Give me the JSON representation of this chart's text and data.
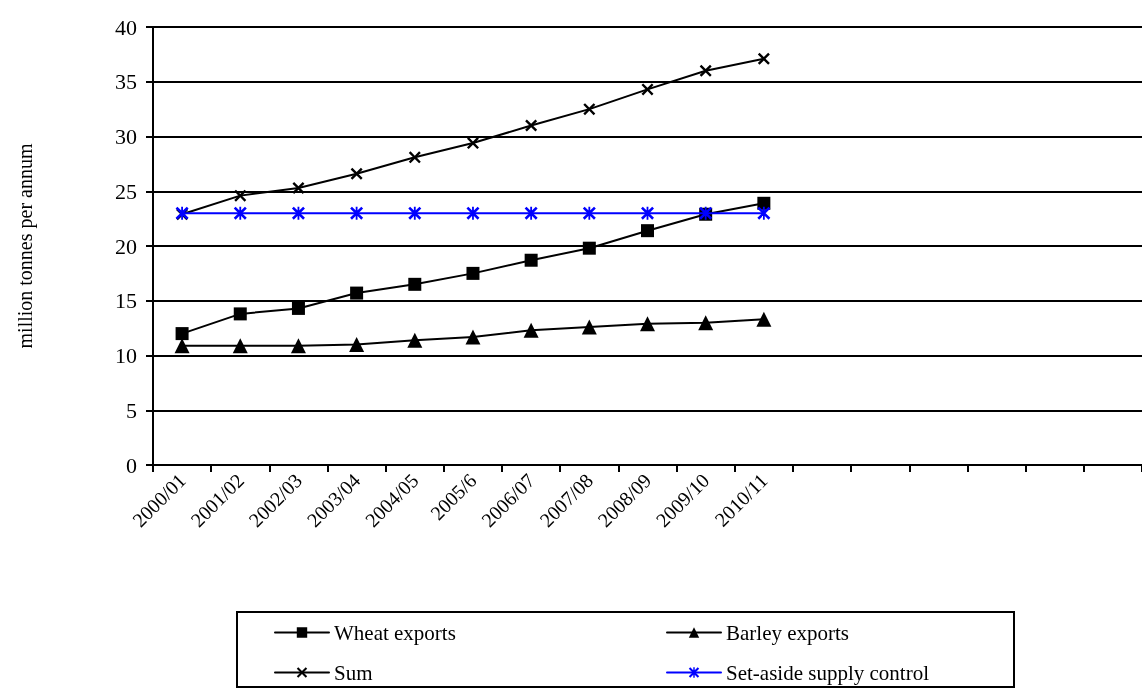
{
  "chart_data": {
    "type": "line",
    "ylabel": "million tonnes per annum",
    "categories": [
      "2000/01",
      "2001/02",
      "2002/03",
      "2003/04",
      "2004/05",
      "2005/6",
      "2006/07",
      "2007/08",
      "2008/09",
      "2009/10",
      "2010/11",
      null,
      null,
      null,
      null,
      null,
      null
    ],
    "series": [
      {
        "name": "Wheat exports",
        "color": "#000000",
        "marker": "square",
        "values": [
          12.0,
          13.8,
          14.3,
          15.7,
          16.5,
          17.5,
          18.7,
          19.8,
          21.4,
          22.9,
          23.9,
          null,
          null,
          null,
          null,
          null,
          null
        ]
      },
      {
        "name": "Barley exports",
        "color": "#000000",
        "marker": "triangle",
        "values": [
          10.9,
          10.9,
          10.9,
          11.0,
          11.4,
          11.7,
          12.3,
          12.6,
          12.9,
          13.0,
          13.3,
          null,
          null,
          null,
          null,
          null,
          null
        ]
      },
      {
        "name": "Sum",
        "color": "#000000",
        "marker": "cross",
        "values": [
          22.9,
          24.6,
          25.3,
          26.6,
          28.1,
          29.4,
          31.0,
          32.5,
          34.3,
          36.0,
          37.1,
          null,
          null,
          null,
          null,
          null,
          null
        ]
      },
      {
        "name": "Set-aside supply control",
        "color": "#0000ff",
        "marker": "star",
        "values": [
          23.0,
          23.0,
          23.0,
          23.0,
          23.0,
          23.0,
          23.0,
          23.0,
          23.0,
          23.0,
          23.0,
          null,
          null,
          null,
          null,
          null,
          null
        ]
      }
    ],
    "ylim": [
      0,
      40
    ],
    "yticks": [
      0,
      5,
      10,
      15,
      20,
      25,
      30,
      35,
      40
    ],
    "grid": "y",
    "legend": "bottom",
    "line_style": "solid"
  }
}
